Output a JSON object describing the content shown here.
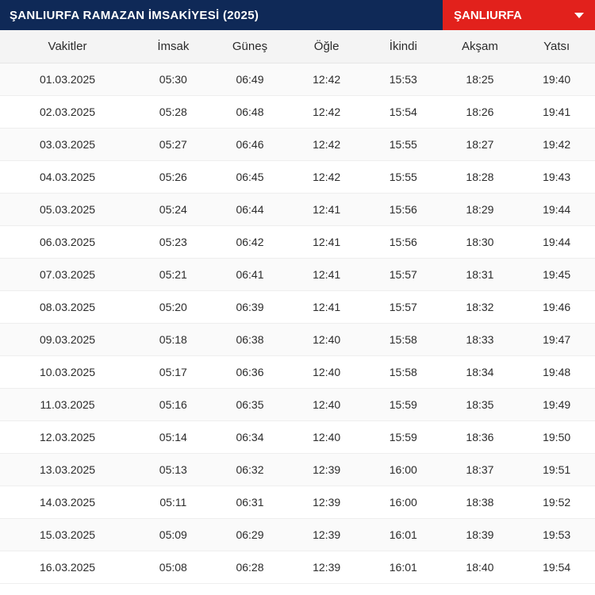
{
  "header": {
    "title": "ŞANLIURFA RAMAZAN İMSAKİYESİ (2025)",
    "city_selected": "ŞANLIURFA"
  },
  "table": {
    "columns": [
      "Vakitler",
      "İmsak",
      "Güneş",
      "Öğle",
      "İkindi",
      "Akşam",
      "Yatsı"
    ],
    "rows": [
      [
        "01.03.2025",
        "05:30",
        "06:49",
        "12:42",
        "15:53",
        "18:25",
        "19:40"
      ],
      [
        "02.03.2025",
        "05:28",
        "06:48",
        "12:42",
        "15:54",
        "18:26",
        "19:41"
      ],
      [
        "03.03.2025",
        "05:27",
        "06:46",
        "12:42",
        "15:55",
        "18:27",
        "19:42"
      ],
      [
        "04.03.2025",
        "05:26",
        "06:45",
        "12:42",
        "15:55",
        "18:28",
        "19:43"
      ],
      [
        "05.03.2025",
        "05:24",
        "06:44",
        "12:41",
        "15:56",
        "18:29",
        "19:44"
      ],
      [
        "06.03.2025",
        "05:23",
        "06:42",
        "12:41",
        "15:56",
        "18:30",
        "19:44"
      ],
      [
        "07.03.2025",
        "05:21",
        "06:41",
        "12:41",
        "15:57",
        "18:31",
        "19:45"
      ],
      [
        "08.03.2025",
        "05:20",
        "06:39",
        "12:41",
        "15:57",
        "18:32",
        "19:46"
      ],
      [
        "09.03.2025",
        "05:18",
        "06:38",
        "12:40",
        "15:58",
        "18:33",
        "19:47"
      ],
      [
        "10.03.2025",
        "05:17",
        "06:36",
        "12:40",
        "15:58",
        "18:34",
        "19:48"
      ],
      [
        "11.03.2025",
        "05:16",
        "06:35",
        "12:40",
        "15:59",
        "18:35",
        "19:49"
      ],
      [
        "12.03.2025",
        "05:14",
        "06:34",
        "12:40",
        "15:59",
        "18:36",
        "19:50"
      ],
      [
        "13.03.2025",
        "05:13",
        "06:32",
        "12:39",
        "16:00",
        "18:37",
        "19:51"
      ],
      [
        "14.03.2025",
        "05:11",
        "06:31",
        "12:39",
        "16:00",
        "18:38",
        "19:52"
      ],
      [
        "15.03.2025",
        "05:09",
        "06:29",
        "12:39",
        "16:01",
        "18:39",
        "19:53"
      ],
      [
        "16.03.2025",
        "05:08",
        "06:28",
        "12:39",
        "16:01",
        "18:40",
        "19:54"
      ]
    ]
  },
  "style": {
    "header_bg": "#0f2957",
    "select_bg": "#e2211c",
    "header_text": "#ffffff",
    "row_alt_bg": "#fafafa",
    "row_bg": "#ffffff",
    "border_color": "#eeeeee",
    "thead_bg": "#f4f4f4",
    "text_color": "#2b2b2b",
    "font_size_header": 15,
    "font_size_cell": 14
  }
}
